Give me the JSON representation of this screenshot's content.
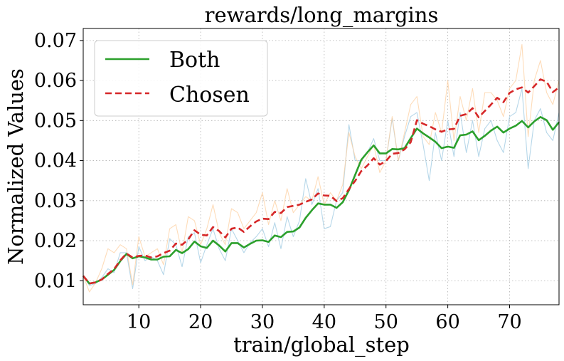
{
  "chart_data": {
    "type": "line",
    "title": "rewards/long_margins",
    "xlabel": "train/global_step",
    "ylabel": "Normalized Values",
    "xlim": [
      1,
      78
    ],
    "ylim": [
      0.004,
      0.073
    ],
    "xticks": [
      10,
      20,
      30,
      40,
      50,
      60,
      70
    ],
    "yticks": [
      0.01,
      0.02,
      0.03,
      0.04,
      0.05,
      0.06,
      0.07
    ],
    "xtick_labels": [
      "10",
      "20",
      "30",
      "40",
      "50",
      "60",
      "70"
    ],
    "ytick_labels": [
      "0.01",
      "0.02",
      "0.03",
      "0.04",
      "0.05",
      "0.06",
      "0.07"
    ],
    "grid": true,
    "legend_position": "top-left",
    "x": [
      1,
      2,
      3,
      4,
      5,
      6,
      7,
      8,
      9,
      10,
      11,
      12,
      13,
      14,
      15,
      16,
      17,
      18,
      19,
      20,
      21,
      22,
      23,
      24,
      25,
      26,
      27,
      28,
      29,
      30,
      31,
      32,
      33,
      34,
      35,
      36,
      37,
      38,
      39,
      40,
      41,
      42,
      43,
      44,
      45,
      46,
      47,
      48,
      49,
      50,
      51,
      52,
      53,
      54,
      55,
      56,
      57,
      58,
      59,
      60,
      61,
      62,
      63,
      64,
      65,
      66,
      67,
      68,
      69,
      70,
      71,
      72,
      73,
      74,
      75,
      76,
      77,
      78
    ],
    "series": [
      {
        "name": "Both",
        "color": "#2ca02c",
        "style": "solid",
        "values": [
          0.0112,
          0.0093,
          0.0096,
          0.0103,
          0.0115,
          0.0127,
          0.0149,
          0.0167,
          0.0156,
          0.0161,
          0.0158,
          0.0153,
          0.0153,
          0.016,
          0.0161,
          0.0177,
          0.0169,
          0.0179,
          0.0198,
          0.0186,
          0.0182,
          0.02,
          0.0188,
          0.0173,
          0.0194,
          0.0194,
          0.0183,
          0.0192,
          0.02,
          0.0201,
          0.0197,
          0.0213,
          0.0209,
          0.0222,
          0.0223,
          0.0233,
          0.0257,
          0.0276,
          0.0293,
          0.029,
          0.029,
          0.0282,
          0.0296,
          0.0326,
          0.0364,
          0.0402,
          0.0421,
          0.0438,
          0.0418,
          0.0418,
          0.0429,
          0.0428,
          0.0431,
          0.0456,
          0.048,
          0.0468,
          0.0458,
          0.0447,
          0.0431,
          0.0435,
          0.0432,
          0.0463,
          0.0465,
          0.0473,
          0.0451,
          0.0462,
          0.0475,
          0.0485,
          0.047,
          0.048,
          0.0487,
          0.0499,
          0.0483,
          0.0498,
          0.0509,
          0.0501,
          0.0477,
          0.0496
        ]
      },
      {
        "name": "Chosen",
        "color": "#d62728",
        "style": "dashed",
        "values": [
          0.0112,
          0.0093,
          0.0096,
          0.0103,
          0.0117,
          0.0129,
          0.0151,
          0.0168,
          0.0158,
          0.0162,
          0.0163,
          0.0158,
          0.0161,
          0.0169,
          0.0175,
          0.0193,
          0.019,
          0.0203,
          0.0226,
          0.0215,
          0.0213,
          0.0234,
          0.0224,
          0.0208,
          0.023,
          0.0233,
          0.0222,
          0.0236,
          0.0248,
          0.0255,
          0.0254,
          0.0272,
          0.0269,
          0.0284,
          0.0287,
          0.029,
          0.0297,
          0.0303,
          0.0318,
          0.0313,
          0.0312,
          0.0299,
          0.0306,
          0.0329,
          0.0349,
          0.0374,
          0.0388,
          0.0406,
          0.039,
          0.0399,
          0.0417,
          0.0419,
          0.0428,
          0.0446,
          0.0501,
          0.0492,
          0.0486,
          0.0478,
          0.0472,
          0.0478,
          0.0479,
          0.0512,
          0.0516,
          0.0531,
          0.0508,
          0.0524,
          0.054,
          0.0557,
          0.0546,
          0.0569,
          0.0578,
          0.0583,
          0.057,
          0.0586,
          0.0603,
          0.0597,
          0.0571,
          0.0583
        ]
      }
    ],
    "raw_series": [
      {
        "color": "#9ecae1",
        "values": [
          0.0112,
          0.0088,
          0.0093,
          0.0108,
          0.013,
          0.012,
          0.017,
          0.017,
          0.008,
          0.0185,
          0.015,
          0.016,
          0.015,
          0.0115,
          0.0205,
          0.019,
          0.0135,
          0.021,
          0.022,
          0.0145,
          0.019,
          0.023,
          0.018,
          0.015,
          0.023,
          0.02,
          0.017,
          0.0195,
          0.021,
          0.023,
          0.0185,
          0.0245,
          0.018,
          0.026,
          0.021,
          0.025,
          0.0355,
          0.029,
          0.033,
          0.023,
          0.0235,
          0.03,
          0.032,
          0.049,
          0.04,
          0.04,
          0.042,
          0.0455,
          0.04,
          0.04,
          0.0505,
          0.04,
          0.046,
          0.051,
          0.052,
          0.044,
          0.035,
          0.047,
          0.04,
          0.05,
          0.041,
          0.052,
          0.042,
          0.05,
          0.041,
          0.048,
          0.05,
          0.045,
          0.042,
          0.051,
          0.052,
          0.058,
          0.038,
          0.05,
          0.053,
          0.047,
          0.045,
          0.052
        ]
      },
      {
        "color": "#fdd0a2",
        "values": [
          0.0112,
          0.0072,
          0.0095,
          0.013,
          0.018,
          0.017,
          0.019,
          0.018,
          0.009,
          0.021,
          0.016,
          0.017,
          0.018,
          0.014,
          0.023,
          0.024,
          0.017,
          0.026,
          0.025,
          0.019,
          0.023,
          0.029,
          0.022,
          0.019,
          0.028,
          0.027,
          0.023,
          0.025,
          0.027,
          0.032,
          0.024,
          0.03,
          0.025,
          0.033,
          0.027,
          0.029,
          0.031,
          0.03,
          0.036,
          0.029,
          0.032,
          0.03,
          0.034,
          0.047,
          0.041,
          0.038,
          0.041,
          0.044,
          0.037,
          0.04,
          0.051,
          0.04,
          0.047,
          0.054,
          0.056,
          0.046,
          0.044,
          0.052,
          0.047,
          0.06,
          0.045,
          0.056,
          0.05,
          0.058,
          0.047,
          0.057,
          0.057,
          0.055,
          0.051,
          0.058,
          0.06,
          0.069,
          0.046,
          0.06,
          0.065,
          0.057,
          0.054,
          0.06
        ]
      }
    ]
  }
}
